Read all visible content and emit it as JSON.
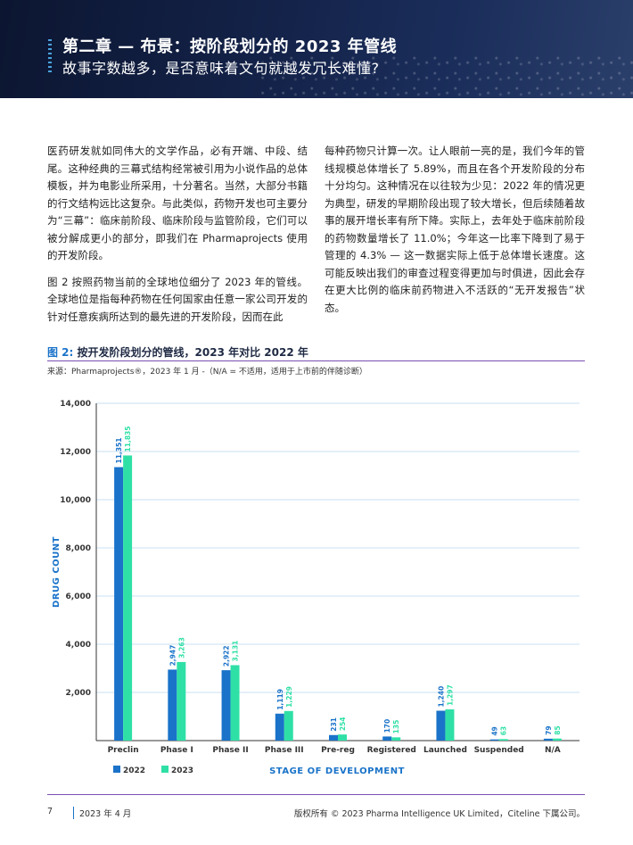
{
  "header": {
    "title": "第二章 — 布景：按阶段划分的 2023 年管线",
    "subtitle": "故事字数越多，是否意味着文句就越发冗长难懂?"
  },
  "body": {
    "left_paragraphs": [
      "医药研发就如同伟大的文学作品，必有开端、中段、结尾。这种经典的三幕式结构经常被引用为小说作品的总体模板，并为电影业所采用，十分著名。当然，大部分书籍的行文结构远比这复杂。与此类似，药物开发也可主要分为“三幕”：临床前阶段、临床阶段与监管阶段，它们可以被分解成更小的部分，即我们在 Pharmaprojects 使用的开发阶段。",
      "图 2 按照药物当前的全球地位细分了 2023 年的管线。全球地位是指每种药物在任何国家由任意一家公司开发的针对任意疾病所达到的最先进的开发阶段，因而在此"
    ],
    "right_paragraphs": [
      "每种药物只计算一次。让人眼前一亮的是，我们今年的管线规模总体增长了 5.89%，而且在各个开发阶段的分布十分均匀。这种情况在以往较为少见：2022 年的情况更为典型，研发的早期阶段出现了较大增长，但后续随着故事的展开增长率有所下降。实际上，去年处于临床前阶段的药物数量增长了 11.0%；今年这一比率下降到了易于管理的 4.3% — 这一数据实际上低于总体增长速度。这可能反映出我们的审查过程变得更加与时俱进，因此会存在更大比例的临床前药物进入不活跃的“无开发报告”状态。"
    ]
  },
  "figure": {
    "label": "图 2:",
    "title": "按开发阶段划分的管线，2023 年对比 2022 年",
    "source": "来源：Pharmaprojects®，2023 年 1 月 -（N/A = 不适用，适用于上市前的伴随诊断）"
  },
  "chart_data": {
    "type": "bar",
    "categories": [
      "Preclin",
      "Phase I",
      "Phase II",
      "Phase III",
      "Pre-reg",
      "Registered",
      "Launched",
      "Suspended",
      "N/A"
    ],
    "series": [
      {
        "name": "2022",
        "values": [
          11351,
          2947,
          2922,
          1119,
          231,
          170,
          1240,
          49,
          79
        ],
        "labels": [
          "11,351",
          "2,947",
          "2,922",
          "1,119",
          "231",
          "170",
          "1,240",
          "49",
          "79"
        ],
        "color": "#1a73c9"
      },
      {
        "name": "2023",
        "values": [
          11835,
          3263,
          3131,
          1229,
          254,
          135,
          1297,
          63,
          85
        ],
        "labels": [
          "11,835",
          "3,263",
          "3,131",
          "1,229",
          "254",
          "135",
          "1,297",
          "63",
          "85"
        ],
        "color": "#2fe0a6"
      }
    ],
    "yticks": [
      2000,
      4000,
      6000,
      8000,
      10000,
      12000,
      14000
    ],
    "ytick_labels": [
      "2,000",
      "4,000",
      "6,000",
      "8,000",
      "10,000",
      "12,000",
      "14,000"
    ],
    "ylim": [
      0,
      14000
    ],
    "xlabel": "STAGE OF DEVELOPMENT",
    "ylabel": "DRUG COUNT",
    "grid": true,
    "legend": "bottom-left"
  },
  "footer": {
    "page": "7",
    "date": "2023 年 4 月",
    "copyright": "版权所有 © 2023 Pharma Intelligence UK Limited，Citeline 下属公司。"
  },
  "colors": {
    "accent": "#1a73c9",
    "accent2": "#2fe0a6",
    "rule": "#7b4fb3",
    "banner": "#14234a"
  }
}
